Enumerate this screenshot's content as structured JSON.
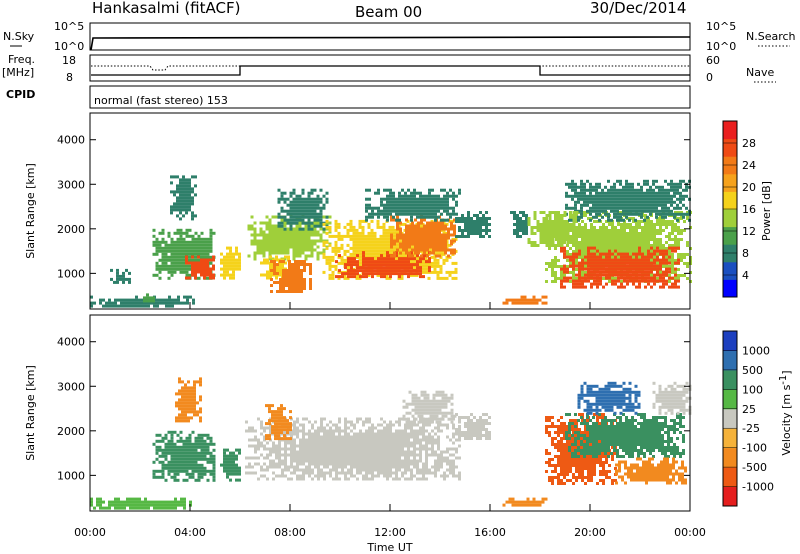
{
  "header": {
    "station": "Hankasalmi (fitACF)",
    "beam": "Beam 00",
    "date": "30/Dec/2014"
  },
  "noise_panel": {
    "left_label": "N.Sky",
    "right_label": "N.Search",
    "left_ticks": [
      "10^5",
      "10^0"
    ],
    "right_ticks": [
      "10^5",
      "10^0"
    ]
  },
  "freq_panel": {
    "label_line1": "Freq.",
    "label_line2": "[MHz]",
    "right_label": "Nave",
    "left_ticks": [
      "18",
      "8"
    ],
    "right_ticks": [
      "60",
      "0"
    ]
  },
  "cpid": {
    "label": "CPID",
    "value": "normal (fast stereo) 153"
  },
  "power_panel": {
    "ylabel": "Slant Range [km]",
    "cbar_label": "Power [dB]",
    "cbar_ticks": [
      "28",
      "24",
      "20",
      "16",
      "12",
      "8",
      "4"
    ],
    "cbar_colors": [
      "#0000ff",
      "#1a4fc0",
      "#2e7f6a",
      "#4aa04a",
      "#9fcf3a",
      "#f5d21b",
      "#f6a21c",
      "#f27a17",
      "#ef4a14",
      "#ea1f1f"
    ]
  },
  "velocity_panel": {
    "ylabel": "Slant Range [km]",
    "cbar_label": "Velocity [m s",
    "cbar_label_sup": "-1",
    "cbar_label_end": "]",
    "cbar_ticks": [
      "1000",
      "500",
      "100",
      "25",
      "-25",
      "-100",
      "-500",
      "-1000"
    ],
    "cbar_colors": [
      "#1c3fbf",
      "#2e6fb0",
      "#3a9060",
      "#56b844",
      "#c8c8c0",
      "#f5b23a",
      "#f28a1f",
      "#ee5a14",
      "#e51e1e"
    ]
  },
  "xaxis": {
    "label": "Time UT",
    "ticks": [
      "00:00",
      "04:00",
      "08:00",
      "12:00",
      "16:00",
      "20:00",
      "00:00"
    ]
  },
  "chart_data": {
    "type": "heatmap",
    "x_range_hours": [
      0,
      24
    ],
    "y_ticks_km": [
      1000,
      2000,
      3000,
      4000
    ],
    "y_range_km": [
      200,
      4600
    ],
    "power_patches": [
      {
        "t0": 0.0,
        "t1": 4.2,
        "r0": 250,
        "r1": 500,
        "level": 6
      },
      {
        "t0": 0.8,
        "t1": 1.6,
        "r0": 800,
        "r1": 1100,
        "level": 8
      },
      {
        "t0": 2.0,
        "t1": 2.6,
        "r0": 350,
        "r1": 550,
        "level": 10
      },
      {
        "t0": 2.5,
        "t1": 5.0,
        "r0": 900,
        "r1": 2000,
        "level": 10
      },
      {
        "t0": 3.8,
        "t1": 5.0,
        "r0": 900,
        "r1": 1400,
        "level": 26
      },
      {
        "t0": 3.2,
        "t1": 4.2,
        "r0": 2200,
        "r1": 3200,
        "level": 6
      },
      {
        "t0": 5.2,
        "t1": 6.0,
        "r0": 900,
        "r1": 1600,
        "level": 18
      },
      {
        "t0": 6.3,
        "t1": 9.6,
        "r0": 1300,
        "r1": 2300,
        "level": 12
      },
      {
        "t0": 6.8,
        "t1": 7.9,
        "r0": 900,
        "r1": 1400,
        "level": 18
      },
      {
        "t0": 7.2,
        "t1": 8.8,
        "r0": 600,
        "r1": 1300,
        "level": 24
      },
      {
        "t0": 7.5,
        "t1": 9.5,
        "r0": 2000,
        "r1": 2900,
        "level": 8
      },
      {
        "t0": 9.3,
        "t1": 14.6,
        "r0": 900,
        "r1": 2200,
        "level": 16
      },
      {
        "t0": 9.8,
        "t1": 13.6,
        "r0": 900,
        "r1": 1500,
        "level": 28
      },
      {
        "t0": 12.0,
        "t1": 14.6,
        "r0": 1400,
        "r1": 2300,
        "level": 22
      },
      {
        "t0": 11.0,
        "t1": 14.8,
        "r0": 2200,
        "r1": 2900,
        "level": 8
      },
      {
        "t0": 14.6,
        "t1": 16.0,
        "r0": 1800,
        "r1": 2400,
        "level": 8
      },
      {
        "t0": 16.5,
        "t1": 18.2,
        "r0": 300,
        "r1": 500,
        "level": 22
      },
      {
        "t0": 16.8,
        "t1": 17.5,
        "r0": 1800,
        "r1": 2400,
        "level": 8
      },
      {
        "t0": 18.2,
        "t1": 24.0,
        "r0": 800,
        "r1": 2400,
        "level": 12
      },
      {
        "t0": 18.8,
        "t1": 23.5,
        "r0": 700,
        "r1": 1600,
        "level": 28
      },
      {
        "t0": 19.0,
        "t1": 24.0,
        "r0": 2200,
        "r1": 3100,
        "level": 8
      },
      {
        "t0": 17.5,
        "t1": 19.5,
        "r0": 1600,
        "r1": 2400,
        "level": 14
      }
    ],
    "velocity_patches": [
      {
        "t0": 0.0,
        "t1": 4.2,
        "r0": 250,
        "r1": 500,
        "level": 25
      },
      {
        "t0": 2.5,
        "t1": 5.0,
        "r0": 900,
        "r1": 2000,
        "level": 100
      },
      {
        "t0": 3.4,
        "t1": 4.4,
        "r0": 2200,
        "r1": 3200,
        "level": -100
      },
      {
        "t0": 5.2,
        "t1": 6.0,
        "r0": 900,
        "r1": 1600,
        "level": 100
      },
      {
        "t0": 6.2,
        "t1": 14.8,
        "r0": 900,
        "r1": 2300,
        "level": 0
      },
      {
        "t0": 7.0,
        "t1": 8.0,
        "r0": 1800,
        "r1": 2600,
        "level": -100
      },
      {
        "t0": 12.5,
        "t1": 14.6,
        "r0": 2200,
        "r1": 2900,
        "level": 0
      },
      {
        "t0": 14.6,
        "t1": 16.0,
        "r0": 1800,
        "r1": 2400,
        "level": 0
      },
      {
        "t0": 16.5,
        "t1": 18.2,
        "r0": 300,
        "r1": 500,
        "level": -100
      },
      {
        "t0": 18.2,
        "t1": 21.0,
        "r0": 800,
        "r1": 2400,
        "level": -500
      },
      {
        "t0": 19.0,
        "t1": 23.8,
        "r0": 1400,
        "r1": 2400,
        "level": 100
      },
      {
        "t0": 21.0,
        "t1": 23.8,
        "r0": 800,
        "r1": 1400,
        "level": -100
      },
      {
        "t0": 22.5,
        "t1": 24.0,
        "r0": 2400,
        "r1": 3100,
        "level": 0
      },
      {
        "t0": 19.5,
        "t1": 22.0,
        "r0": 2400,
        "r1": 3100,
        "level": 500
      }
    ]
  }
}
